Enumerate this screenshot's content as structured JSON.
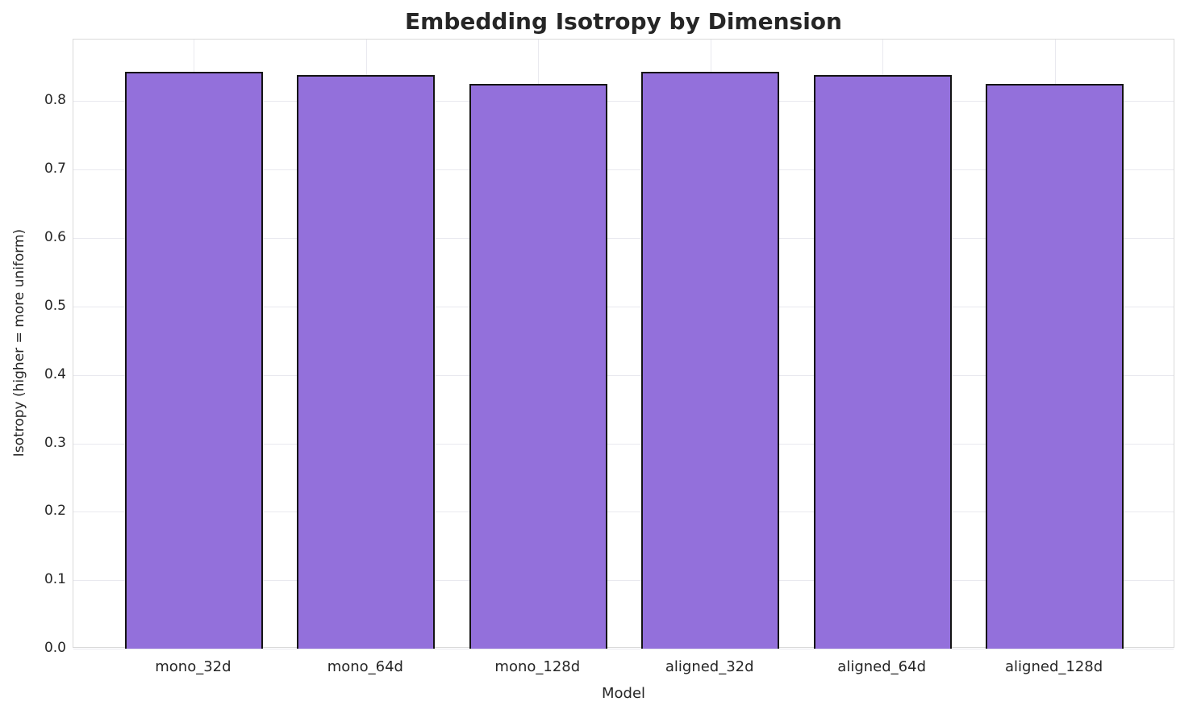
{
  "chart_data": {
    "type": "bar",
    "title": "Embedding Isotropy by Dimension",
    "xlabel": "Model",
    "ylabel": "Isotropy (higher = more uniform)",
    "categories": [
      "mono_32d",
      "mono_64d",
      "mono_128d",
      "aligned_32d",
      "aligned_64d",
      "aligned_128d"
    ],
    "values": [
      0.843,
      0.838,
      0.825,
      0.843,
      0.838,
      0.825
    ],
    "ylim": [
      0,
      0.89
    ],
    "yticks": [
      0.0,
      0.1,
      0.2,
      0.3,
      0.4,
      0.5,
      0.6,
      0.7,
      0.8
    ],
    "grid": true,
    "legend": "none",
    "bar_color": "#9370db",
    "bar_edge_color": "#141414",
    "grid_color": "#e9e9ef",
    "text_color": "#262626"
  }
}
